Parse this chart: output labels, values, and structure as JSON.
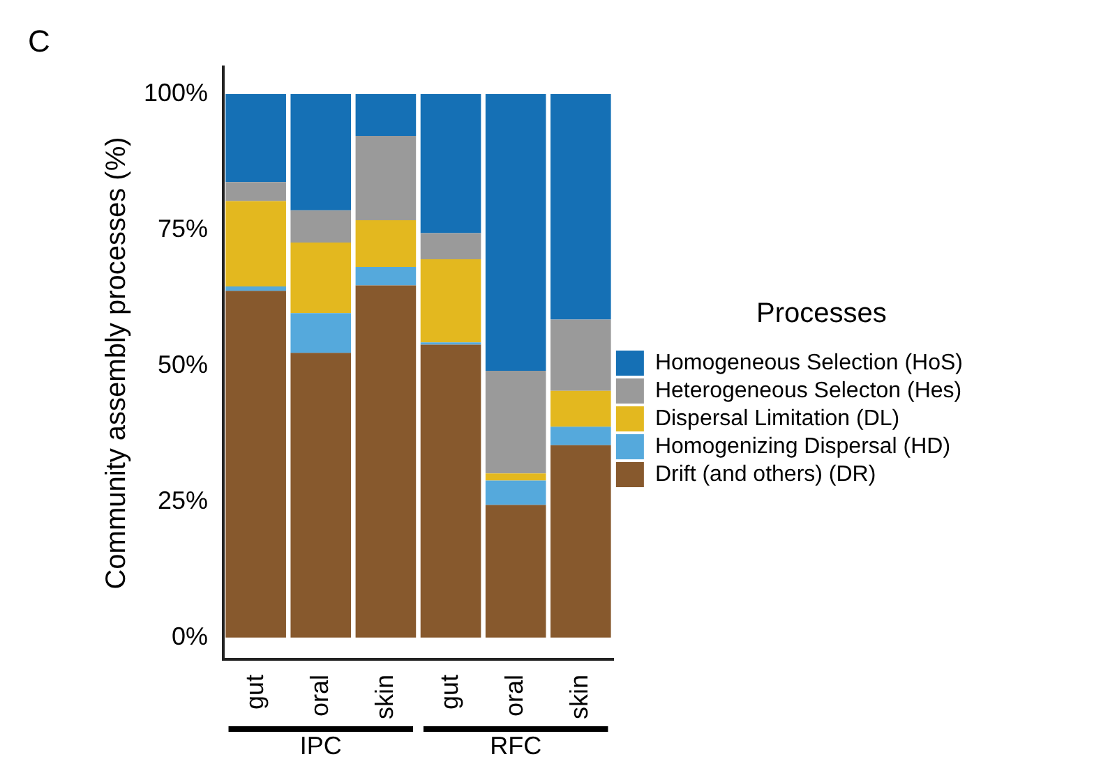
{
  "chart_data": {
    "type": "bar",
    "title": "C",
    "ylabel": "Community assembly processes (%)",
    "legend_title": "Processes",
    "categories": [
      "gut",
      "oral",
      "skin",
      "gut",
      "oral",
      "skin"
    ],
    "annotations": [
      "IPC",
      "RFC"
    ],
    "stacked": true,
    "legend": "right",
    "grid": false,
    "ylim": [
      -4,
      105
    ],
    "yticks": [
      {
        "value": 0,
        "label": "0%"
      },
      {
        "value": 25,
        "label": "25%"
      },
      {
        "value": 50,
        "label": "50%"
      },
      {
        "value": 75,
        "label": "75%"
      },
      {
        "value": 100,
        "label": "100%"
      }
    ],
    "series": [
      {
        "name": "Drift (and others) (DR)",
        "color": "#87592d",
        "values": [
          63.8,
          52.4,
          64.8,
          53.9,
          24.4,
          35.4
        ]
      },
      {
        "name": "Homogenizing Dispersal (HD)",
        "color": "#55a9dc",
        "values": [
          0.8,
          7.3,
          3.4,
          0.4,
          4.5,
          3.4
        ]
      },
      {
        "name": "Dispersal Limitation (DL)",
        "color": "#e3b81f",
        "values": [
          15.7,
          13.0,
          8.6,
          15.3,
          1.3,
          6.6
        ]
      },
      {
        "name": "Heterogeneous Selecton (Hes)",
        "color": "#9a9a9a",
        "values": [
          3.5,
          5.9,
          15.5,
          4.8,
          18.9,
          13.1
        ]
      },
      {
        "name": "Homogeneous Selection (HoS)",
        "color": "#1570b5",
        "values": [
          16.2,
          21.4,
          7.7,
          25.6,
          50.9,
          41.5
        ]
      }
    ]
  }
}
